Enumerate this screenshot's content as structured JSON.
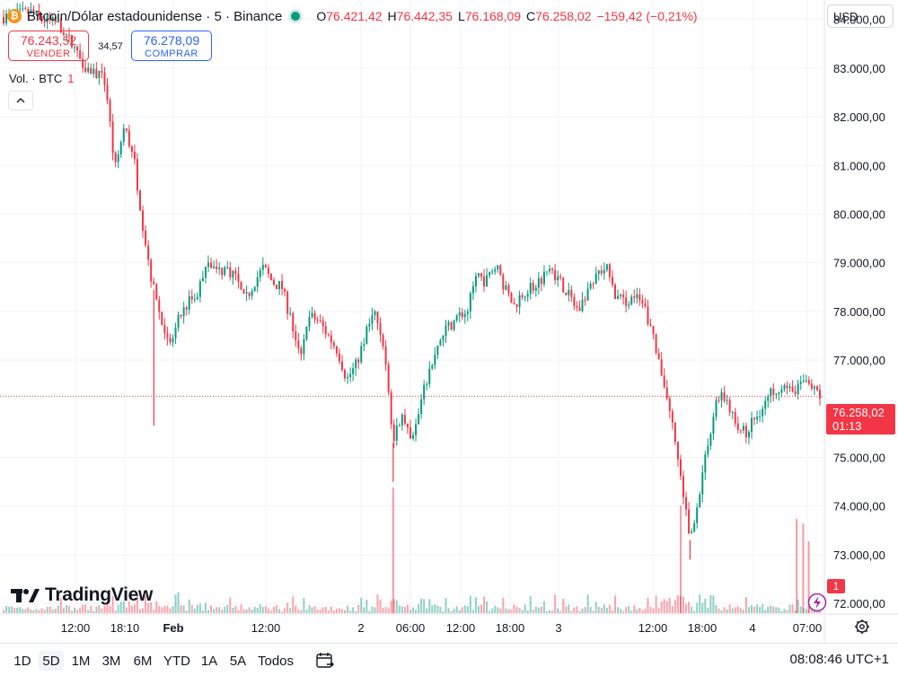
{
  "header": {
    "coin_glyph": "₿",
    "symbol": "Bitcoin/Dólar estadounidense · 5 · Binance",
    "ohlc": [
      {
        "label": "O",
        "value": "76.421,42"
      },
      {
        "label": "H",
        "value": "76.442,35"
      },
      {
        "label": "L",
        "value": "76.168,09"
      },
      {
        "label": "C",
        "value": "76.258,02"
      }
    ],
    "change": "−159,42 (−0,21%)",
    "currency": "USD"
  },
  "trade": {
    "sell_price": "76.243,52",
    "sell_label": "VENDER",
    "spread": "34,57",
    "buy_price": "76.278,09",
    "buy_label": "COMPRAR"
  },
  "volume_legend": {
    "label": "Vol. · BTC",
    "value": "1"
  },
  "logo": {
    "text": "TradingView"
  },
  "price_tag": {
    "price": "76.258,02",
    "countdown": "01:13"
  },
  "volume_tag": "1",
  "bottom": {
    "ranges": [
      "1D",
      "5D",
      "1M",
      "3M",
      "6M",
      "YTD",
      "1A",
      "5A",
      "Todos"
    ],
    "active_range": "5D",
    "clock": "08:08:46 UTC+1"
  },
  "colors": {
    "up": "#089981",
    "down": "#f23645",
    "grid": "#f0f3fa",
    "text": "#131722"
  },
  "chart_data": {
    "type": "candlestick",
    "interval": "5m",
    "current_price": 76258.02,
    "ylim": [
      71800,
      84400
    ],
    "y_ticks": [
      {
        "value": 84000,
        "label": "84.000,00"
      },
      {
        "value": 83000,
        "label": "83.000,00"
      },
      {
        "value": 82000,
        "label": "82.000,00"
      },
      {
        "value": 81000,
        "label": "81.000,00"
      },
      {
        "value": 80000,
        "label": "80.000,00"
      },
      {
        "value": 79000,
        "label": "79.000,00"
      },
      {
        "value": 78000,
        "label": "78.000,00"
      },
      {
        "value": 77000,
        "label": "77.000,00"
      },
      {
        "value": 75000,
        "label": "75.000,00"
      },
      {
        "value": 74000,
        "label": "74.000,00"
      },
      {
        "value": 73000,
        "label": "73.000,00"
      },
      {
        "value": 72000,
        "label": "72.000,00"
      }
    ],
    "x_ticks": [
      {
        "label": "12:00",
        "bold": false
      },
      {
        "label": "18:10",
        "bold": false
      },
      {
        "label": "Feb",
        "bold": true
      },
      {
        "label": "12:00",
        "bold": false
      },
      {
        "label": "2",
        "bold": false
      },
      {
        "label": "06:00",
        "bold": false
      },
      {
        "label": "12:00",
        "bold": false
      },
      {
        "label": "18:00",
        "bold": false
      },
      {
        "label": "3",
        "bold": false
      },
      {
        "label": "12:00",
        "bold": false
      },
      {
        "label": "18:00",
        "bold": false
      },
      {
        "label": "4",
        "bold": false
      },
      {
        "label": "07:00",
        "bold": false
      }
    ],
    "price_path": [
      [
        0,
        84050
      ],
      [
        3,
        84150
      ],
      [
        4,
        84000
      ],
      [
        6,
        83900
      ],
      [
        8,
        83300
      ],
      [
        9,
        83000
      ],
      [
        10,
        82900
      ],
      [
        11,
        82700
      ],
      [
        12,
        80900
      ],
      [
        13,
        81800
      ],
      [
        14,
        81200
      ],
      [
        15,
        79800
      ],
      [
        16,
        78600
      ],
      [
        17,
        77800
      ],
      [
        18,
        77300
      ],
      [
        19,
        77900
      ],
      [
        20,
        78200
      ],
      [
        21,
        78400
      ],
      [
        22,
        79100
      ],
      [
        23,
        78800
      ],
      [
        24,
        78900
      ],
      [
        25,
        78700
      ],
      [
        26,
        78200
      ],
      [
        27,
        78600
      ],
      [
        28,
        78900
      ],
      [
        29,
        78600
      ],
      [
        30,
        78500
      ],
      [
        31,
        77800
      ],
      [
        32,
        77000
      ],
      [
        33,
        77900
      ],
      [
        34,
        77800
      ],
      [
        35,
        77500
      ],
      [
        36,
        77200
      ],
      [
        37,
        76600
      ],
      [
        38,
        76900
      ],
      [
        39,
        77500
      ],
      [
        40,
        78000
      ],
      [
        41,
        77300
      ],
      [
        42,
        75300
      ],
      [
        43,
        76000
      ],
      [
        44,
        75200
      ],
      [
        45,
        76100
      ],
      [
        46,
        76900
      ],
      [
        47,
        77400
      ],
      [
        48,
        77700
      ],
      [
        49,
        77900
      ],
      [
        50,
        78000
      ],
      [
        51,
        78800
      ],
      [
        52,
        78600
      ],
      [
        53,
        79000
      ],
      [
        54,
        78500
      ],
      [
        55,
        78100
      ],
      [
        56,
        78400
      ],
      [
        57,
        78500
      ],
      [
        58,
        78700
      ],
      [
        59,
        78900
      ],
      [
        60,
        78600
      ],
      [
        61,
        78300
      ],
      [
        62,
        78000
      ],
      [
        63,
        78500
      ],
      [
        64,
        78800
      ],
      [
        65,
        78900
      ],
      [
        66,
        78300
      ],
      [
        67,
        78200
      ],
      [
        68,
        78300
      ],
      [
        69,
        78100
      ],
      [
        70,
        77500
      ],
      [
        71,
        76700
      ],
      [
        72,
        75800
      ],
      [
        73,
        74600
      ],
      [
        74,
        73300
      ],
      [
        75,
        74300
      ],
      [
        76,
        75400
      ],
      [
        77,
        76300
      ],
      [
        78,
        76200
      ],
      [
        79,
        75600
      ],
      [
        80,
        75500
      ],
      [
        81,
        75800
      ],
      [
        82,
        76100
      ],
      [
        83,
        76400
      ],
      [
        84,
        76500
      ],
      [
        85,
        76300
      ],
      [
        86,
        76600
      ],
      [
        87,
        76400
      ],
      [
        88,
        76250
      ]
    ]
  }
}
